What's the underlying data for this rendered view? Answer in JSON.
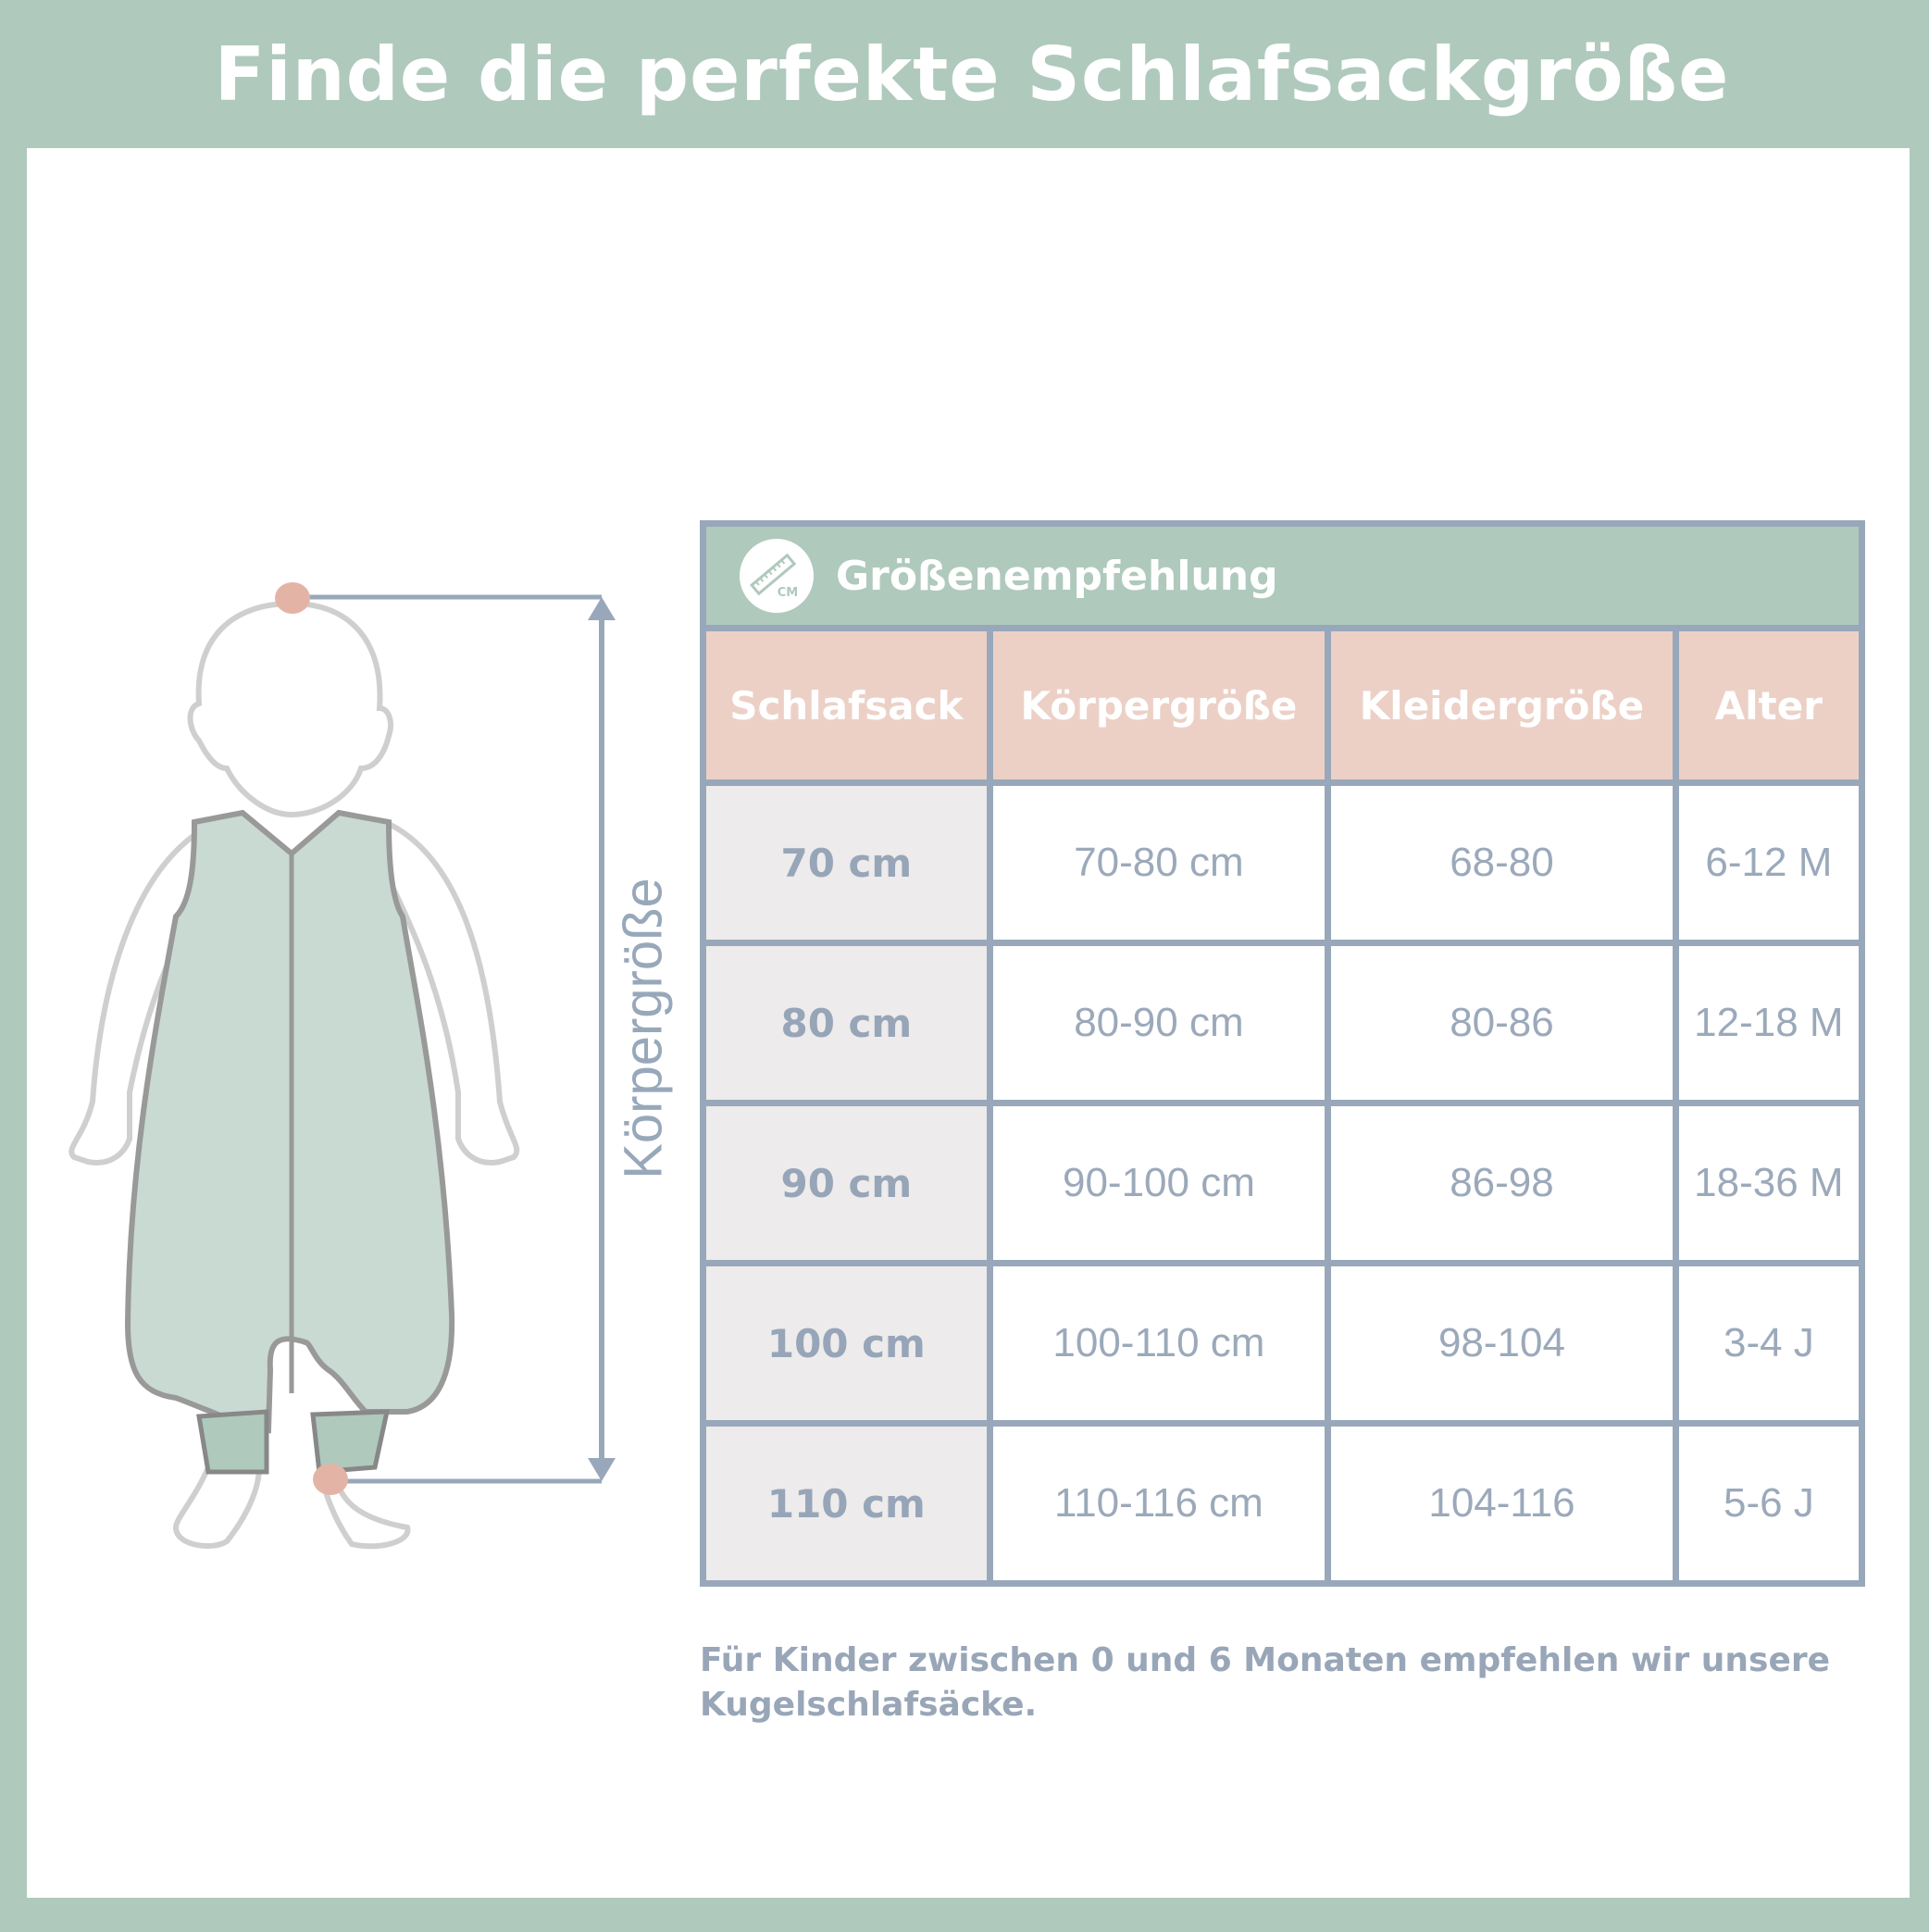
{
  "title": "Finde die perfekte Schlafsackgröße",
  "illustration": {
    "measure_label": "Körpergröße",
    "icon": "baby-in-sleeping-bag"
  },
  "table": {
    "header_title": "Größenempfehlung",
    "header_icon": "ruler-cm-icon",
    "columns": [
      "Schlafsack",
      "Körpergröße",
      "Kleidergröße",
      "Alter"
    ],
    "rows": [
      [
        "70 cm",
        "70-80 cm",
        "68-80",
        "6-12 M"
      ],
      [
        "80 cm",
        "80-90 cm",
        "80-86",
        "12-18 M"
      ],
      [
        "90 cm",
        "90-100 cm",
        "86-98",
        "18-36 M"
      ],
      [
        "100 cm",
        "100-110 cm",
        "98-104",
        "3-4 J"
      ],
      [
        "110 cm",
        "110-116 cm",
        "104-116",
        "5-6 J"
      ]
    ]
  },
  "note": "Für Kinder zwischen 0 und 6 Monaten empfehlen wir unsere Kugelschlafsäcke.",
  "colors": {
    "frame": "#afc9bd",
    "header_row": "#ecd0c6",
    "border": "#98a8ba",
    "first_col": "#edebeb",
    "marker": "#e3b4a6"
  }
}
